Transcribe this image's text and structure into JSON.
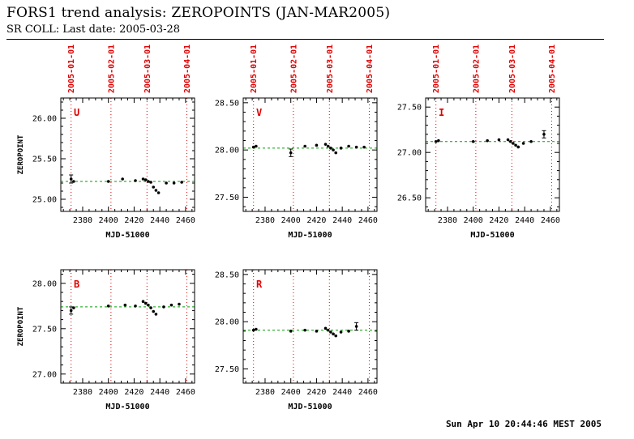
{
  "header": {
    "title": "FORS1 trend analysis: ZEROPOINTS (JAN-MAR2005)",
    "subtitle": "SR COLL: Last date: 2005-03-28"
  },
  "footer": {
    "timestamp": "Sun Apr 10 20:44:46 MEST 2005"
  },
  "chart_data": {
    "type": "scatter",
    "shared": {
      "xlabel": "MJD-51000",
      "ylabel": "ZEROPOINT",
      "xlim": [
        2363,
        2467
      ],
      "xticks": [
        2380,
        2400,
        2420,
        2440,
        2460
      ],
      "grid": false,
      "date_lines": {
        "x": [
          2371,
          2402,
          2430,
          2461
        ],
        "labels": [
          "2005-01-01",
          "2005-02-01",
          "2005-03-01",
          "2005-04-01"
        ],
        "color": "#e00000"
      },
      "trend_color": "#00a000",
      "point_color": "#000000"
    },
    "panels": [
      {
        "label": "U",
        "show_ylabel": true,
        "show_datelabels": true,
        "ylim": [
          24.85,
          26.25
        ],
        "yticks": [
          25.0,
          25.5,
          26.0
        ],
        "trend": 25.22,
        "points": [
          [
            2371,
            25.25,
            0.05
          ],
          [
            2373,
            25.22
          ],
          [
            2400,
            25.22
          ],
          [
            2411,
            25.25
          ],
          [
            2421,
            25.23
          ],
          [
            2427,
            25.25
          ],
          [
            2429,
            25.24
          ],
          [
            2431,
            25.22
          ],
          [
            2433,
            25.21
          ],
          [
            2435,
            25.15
          ],
          [
            2437,
            25.11
          ],
          [
            2439,
            25.08
          ],
          [
            2445,
            25.2
          ],
          [
            2451,
            25.2
          ],
          [
            2457,
            25.21
          ]
        ]
      },
      {
        "label": "V",
        "show_ylabel": false,
        "show_datelabels": true,
        "ylim": [
          27.35,
          28.55
        ],
        "yticks": [
          27.5,
          28.0,
          28.5
        ],
        "trend": 28.02,
        "points": [
          [
            2371,
            28.03
          ],
          [
            2373,
            28.04
          ],
          [
            2400,
            27.97,
            0.04
          ],
          [
            2411,
            28.04
          ],
          [
            2420,
            28.05
          ],
          [
            2427,
            28.06
          ],
          [
            2429,
            28.04
          ],
          [
            2431,
            28.02
          ],
          [
            2433,
            28.0
          ],
          [
            2435,
            27.97
          ],
          [
            2439,
            28.02
          ],
          [
            2445,
            28.04
          ],
          [
            2451,
            28.03
          ],
          [
            2457,
            28.03
          ]
        ]
      },
      {
        "label": "I",
        "show_ylabel": false,
        "show_datelabels": true,
        "ylim": [
          26.35,
          27.6
        ],
        "yticks": [
          26.5,
          27.0,
          27.5
        ],
        "trend": 27.12,
        "points": [
          [
            2371,
            27.12
          ],
          [
            2373,
            27.13
          ],
          [
            2400,
            27.12
          ],
          [
            2411,
            27.13
          ],
          [
            2420,
            27.14
          ],
          [
            2427,
            27.14
          ],
          [
            2429,
            27.12
          ],
          [
            2431,
            27.1
          ],
          [
            2433,
            27.08
          ],
          [
            2435,
            27.06
          ],
          [
            2439,
            27.1
          ],
          [
            2445,
            27.12
          ],
          [
            2455,
            27.2,
            0.04
          ]
        ]
      },
      {
        "label": "B",
        "show_ylabel": true,
        "show_datelabels": false,
        "ylim": [
          26.9,
          28.15
        ],
        "yticks": [
          27.0,
          27.5,
          28.0
        ],
        "trend": 27.74,
        "points": [
          [
            2371,
            27.7,
            0.04
          ],
          [
            2373,
            27.73
          ],
          [
            2400,
            27.75
          ],
          [
            2413,
            27.76
          ],
          [
            2421,
            27.75
          ],
          [
            2427,
            27.8
          ],
          [
            2429,
            27.78
          ],
          [
            2431,
            27.76
          ],
          [
            2433,
            27.73
          ],
          [
            2435,
            27.69
          ],
          [
            2437,
            27.66
          ],
          [
            2443,
            27.74
          ],
          [
            2449,
            27.76
          ],
          [
            2455,
            27.77
          ]
        ]
      },
      {
        "label": "R",
        "show_ylabel": false,
        "show_datelabels": false,
        "ylim": [
          27.35,
          28.55
        ],
        "yticks": [
          27.5,
          28.0,
          28.5
        ],
        "trend": 27.91,
        "points": [
          [
            2371,
            27.91
          ],
          [
            2373,
            27.92
          ],
          [
            2400,
            27.9
          ],
          [
            2411,
            27.91
          ],
          [
            2420,
            27.9
          ],
          [
            2427,
            27.93
          ],
          [
            2429,
            27.91
          ],
          [
            2431,
            27.89
          ],
          [
            2433,
            27.87
          ],
          [
            2435,
            27.85
          ],
          [
            2439,
            27.89
          ],
          [
            2445,
            27.9
          ],
          [
            2451,
            27.95,
            0.04
          ]
        ]
      }
    ]
  }
}
